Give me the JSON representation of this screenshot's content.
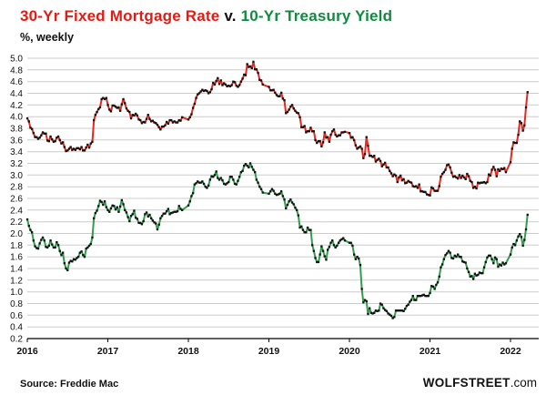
{
  "header": {
    "title_red": "30-Yr Fixed Mortgage Rate",
    "title_mid": " v. ",
    "title_green": "10-Yr Treasury Yield",
    "subtitle": "%, weekly"
  },
  "footer": {
    "source": "Source: Freddie Mac",
    "brand_bold": "WOLFSTREET",
    "brand_rest": ".com"
  },
  "chart_data": {
    "type": "line",
    "title": "30-Yr Fixed Mortgage Rate v. 10-Yr Treasury Yield",
    "subtitle": "%, weekly",
    "x_unit": "year, weekly data points",
    "ylim": [
      0.2,
      5.0
    ],
    "ytick_step": 0.2,
    "xlim": [
      2016,
      2022.35
    ],
    "xticks": [
      2016,
      2017,
      2018,
      2019,
      2020,
      2021,
      2022
    ],
    "grid": "horizontal",
    "grid_color": "#cccccc",
    "marker_color": "#111111",
    "legend_position": "none (colored title acts as legend)",
    "series": [
      {
        "name": "30-Yr Fixed Mortgage Rate",
        "color": "#e8281e",
        "values_by_year": {
          "2016": [
            3.97,
            3.92,
            3.81,
            3.79,
            3.72,
            3.65,
            3.65,
            3.62,
            3.64,
            3.68,
            3.73,
            3.71,
            3.71,
            3.59,
            3.58,
            3.66,
            3.61,
            3.57,
            3.58,
            3.64,
            3.66,
            3.6,
            3.54,
            3.56,
            3.48,
            3.41,
            3.42,
            3.45,
            3.48,
            3.43,
            3.45,
            3.43,
            3.46,
            3.46,
            3.44,
            3.48,
            3.42,
            3.42,
            3.47,
            3.52,
            3.47,
            3.54,
            3.57,
            3.94,
            4.03,
            4.08,
            4.13,
            4.16,
            4.3,
            4.32,
            4.3,
            4.32
          ],
          "2017": [
            4.2,
            4.12,
            4.09,
            4.19,
            4.19,
            4.17,
            4.15,
            4.16,
            4.1,
            4.21,
            4.3,
            4.23,
            4.14,
            4.1,
            4.08,
            3.97,
            4.03,
            4.02,
            4.05,
            4.02,
            3.95,
            3.94,
            3.89,
            3.91,
            3.9,
            3.96,
            4.03,
            3.96,
            3.92,
            3.93,
            3.9,
            3.89,
            3.86,
            3.82,
            3.78,
            3.83,
            3.83,
            3.85,
            3.91,
            3.88,
            3.94,
            3.94,
            3.9,
            3.92,
            3.9,
            3.9,
            3.94,
            3.93,
            3.99
          ],
          "2018": [
            3.95,
            3.99,
            4.04,
            4.15,
            4.22,
            4.32,
            4.38,
            4.4,
            4.43,
            4.46,
            4.44,
            4.45,
            4.44,
            4.4,
            4.42,
            4.47,
            4.58,
            4.55,
            4.61,
            4.66,
            4.56,
            4.62,
            4.54,
            4.57,
            4.55,
            4.52,
            4.53,
            4.52,
            4.54,
            4.6,
            4.59,
            4.53,
            4.51,
            4.54,
            4.6,
            4.65,
            4.72,
            4.71,
            4.9,
            4.85,
            4.86,
            4.83,
            4.94,
            4.81,
            4.81,
            4.75,
            4.63,
            4.62,
            4.55
          ],
          "2019": [
            4.51,
            4.45,
            4.45,
            4.46,
            4.41,
            4.37,
            4.35,
            4.35,
            4.41,
            4.31,
            4.28,
            4.06,
            4.08,
            4.12,
            4.17,
            4.2,
            4.14,
            4.1,
            4.07,
            4.06,
            3.99,
            3.82,
            3.82,
            3.84,
            3.73,
            3.75,
            3.75,
            3.81,
            3.75,
            3.75,
            3.6,
            3.55,
            3.58,
            3.58,
            3.49,
            3.56,
            3.73,
            3.64,
            3.65,
            3.57,
            3.69,
            3.75,
            3.78,
            3.69,
            3.66,
            3.68,
            3.68,
            3.73,
            3.73,
            3.74
          ],
          "2020": [
            3.72,
            3.64,
            3.65,
            3.6,
            3.51,
            3.45,
            3.47,
            3.49,
            3.45,
            3.29,
            3.36,
            3.65,
            3.5,
            3.33,
            3.33,
            3.31,
            3.33,
            3.23,
            3.26,
            3.28,
            3.24,
            3.15,
            3.18,
            3.21,
            3.13,
            3.13,
            3.07,
            3.03,
            2.98,
            3.01,
            2.99,
            2.88,
            2.96,
            2.99,
            2.91,
            2.93,
            2.86,
            2.87,
            2.9,
            2.88,
            2.87,
            2.81,
            2.8,
            2.81,
            2.78,
            2.84,
            2.72,
            2.72,
            2.71,
            2.71,
            2.67,
            2.66
          ],
          "2021": [
            2.65,
            2.79,
            2.77,
            2.73,
            2.73,
            2.73,
            2.81,
            2.97,
            3.02,
            3.05,
            3.09,
            3.17,
            3.18,
            3.13,
            3.04,
            2.97,
            2.98,
            2.96,
            2.94,
            3.0,
            2.95,
            2.99,
            2.96,
            2.93,
            3.02,
            2.98,
            2.9,
            2.88,
            2.78,
            2.8,
            2.77,
            2.87,
            2.86,
            2.87,
            2.87,
            2.88,
            2.86,
            2.88,
            3.01,
            2.99,
            3.09,
            3.14,
            3.09,
            2.98,
            3.1,
            3.07,
            3.11,
            3.1,
            3.12,
            3.05
          ],
          "2022": [
            3.22,
            3.45,
            3.56,
            3.55,
            3.55,
            3.69,
            3.92,
            3.89,
            3.76,
            3.85,
            4.16,
            4.42
          ]
        }
      },
      {
        "name": "10-Yr Treasury Yield",
        "color": "#2f9e4e",
        "values_by_year": {
          "2016": [
            2.24,
            2.13,
            2.06,
            2.02,
            1.88,
            1.78,
            1.75,
            1.74,
            1.83,
            1.89,
            1.93,
            1.88,
            1.77,
            1.76,
            1.79,
            1.88,
            1.81,
            1.76,
            1.76,
            1.85,
            1.8,
            1.7,
            1.63,
            1.67,
            1.49,
            1.4,
            1.37,
            1.5,
            1.53,
            1.52,
            1.56,
            1.55,
            1.58,
            1.6,
            1.67,
            1.69,
            1.63,
            1.6,
            1.74,
            1.76,
            1.79,
            1.82,
            1.93,
            2.26,
            2.35,
            2.39,
            2.47,
            2.56,
            2.54,
            2.49,
            2.55,
            2.45
          ],
          "2017": [
            2.4,
            2.37,
            2.43,
            2.48,
            2.47,
            2.41,
            2.45,
            2.37,
            2.46,
            2.57,
            2.5,
            2.4,
            2.36,
            2.28,
            2.21,
            2.3,
            2.33,
            2.39,
            2.27,
            2.25,
            2.18,
            2.18,
            2.16,
            2.21,
            2.33,
            2.36,
            2.29,
            2.32,
            2.26,
            2.22,
            2.19,
            2.17,
            2.07,
            2.15,
            2.26,
            2.3,
            2.34,
            2.34,
            2.38,
            2.42,
            2.33,
            2.35,
            2.36,
            2.37,
            2.37,
            2.38,
            2.47,
            2.42,
            2.4
          ],
          "2018": [
            2.48,
            2.55,
            2.64,
            2.69,
            2.84,
            2.86,
            2.89,
            2.87,
            2.87,
            2.89,
            2.85,
            2.8,
            2.78,
            2.82,
            2.92,
            2.98,
            2.97,
            3.0,
            3.06,
            2.95,
            2.92,
            2.95,
            2.91,
            2.85,
            2.84,
            2.86,
            2.88,
            2.97,
            2.97,
            2.92,
            2.85,
            2.84,
            2.9,
            2.97,
            3.05,
            3.07,
            3.16,
            3.19,
            3.16,
            3.13,
            3.2,
            3.14,
            3.09,
            3.05,
            2.92,
            2.87,
            2.8,
            2.76,
            2.7
          ],
          "2019": [
            2.68,
            2.72,
            2.76,
            2.73,
            2.68,
            2.66,
            2.67,
            2.68,
            2.72,
            2.64,
            2.58,
            2.43,
            2.49,
            2.55,
            2.58,
            2.53,
            2.5,
            2.44,
            2.4,
            2.31,
            2.1,
            2.12,
            2.06,
            2.02,
            2.02,
            2.1,
            2.06,
            2.06,
            1.8,
            1.7,
            1.58,
            1.51,
            1.51,
            1.64,
            1.78,
            1.7,
            1.61,
            1.55,
            1.72,
            1.77,
            1.84,
            1.88,
            1.8,
            1.76,
            1.79,
            1.84,
            1.88,
            1.9,
            1.92,
            1.88
          ],
          "2020": [
            1.84,
            1.84,
            1.79,
            1.64,
            1.56,
            1.6,
            1.57,
            1.46,
            1.05,
            0.82,
            0.86,
            0.84,
            0.62,
            0.72,
            0.64,
            0.63,
            0.64,
            0.68,
            0.67,
            0.68,
            0.8,
            0.78,
            0.72,
            0.69,
            0.67,
            0.63,
            0.61,
            0.59,
            0.55,
            0.57,
            0.68,
            0.68,
            0.68,
            0.68,
            0.68,
            0.67,
            0.71,
            0.76,
            0.78,
            0.83,
            0.86,
            0.93,
            0.86,
            0.86,
            0.93,
            0.93,
            0.93,
            0.94,
            0.95,
            0.93,
            0.93,
            0.93
          ],
          "2021": [
            0.98,
            1.1,
            1.09,
            1.05,
            1.12,
            1.16,
            1.26,
            1.42,
            1.47,
            1.56,
            1.63,
            1.66,
            1.7,
            1.67,
            1.58,
            1.57,
            1.62,
            1.6,
            1.64,
            1.6,
            1.6,
            1.52,
            1.51,
            1.5,
            1.4,
            1.34,
            1.26,
            1.27,
            1.22,
            1.31,
            1.28,
            1.29,
            1.33,
            1.32,
            1.32,
            1.42,
            1.51,
            1.59,
            1.62,
            1.62,
            1.56,
            1.49,
            1.59,
            1.56,
            1.43,
            1.47,
            1.45,
            1.5,
            1.47,
            1.49
          ],
          "2022": [
            1.64,
            1.76,
            1.82,
            1.8,
            1.88,
            1.95,
            1.99,
            1.94,
            1.79,
            1.89,
            2.07,
            2.32
          ]
        }
      }
    ]
  }
}
